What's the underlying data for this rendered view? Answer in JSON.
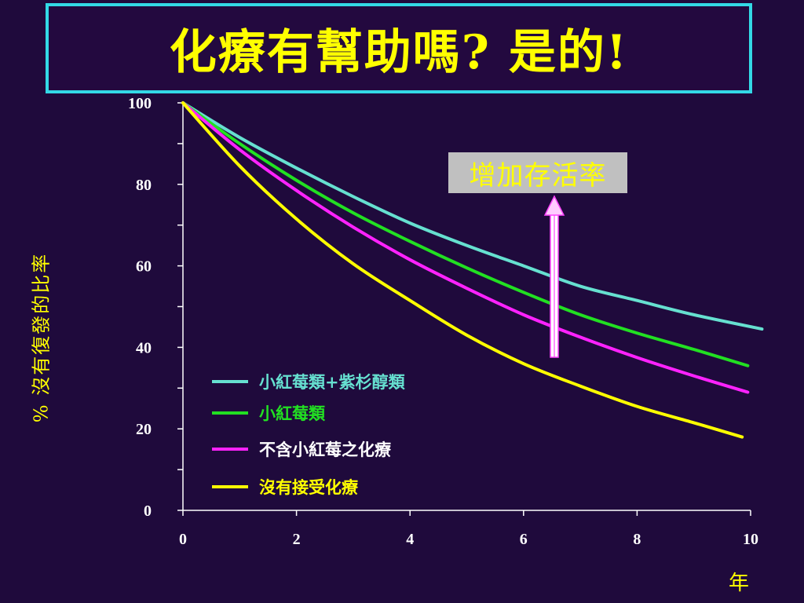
{
  "slide": {
    "title": "化療有幫助嗎? 是的!"
  },
  "chart_data": {
    "type": "line",
    "title": "",
    "xlabel": "年",
    "ylabel": "% 沒有復發的比率",
    "xlim": [
      0,
      10
    ],
    "ylim": [
      0,
      100
    ],
    "x_ticks": [
      0,
      2,
      4,
      6,
      8,
      10
    ],
    "y_ticks": [
      0,
      20,
      40,
      60,
      80,
      100
    ],
    "grid": false,
    "legend_position": "center",
    "annotation": "增加存活率",
    "series": [
      {
        "name": "小紅莓類+紫杉醇類",
        "color": "#66e0d0",
        "x": [
          0,
          1,
          2,
          3,
          4,
          5,
          6,
          7,
          8,
          9,
          10.2
        ],
        "values": [
          100,
          91.5,
          84,
          77,
          70.5,
          65,
          60,
          55,
          51.5,
          48,
          44.5
        ]
      },
      {
        "name": "小紅莓類",
        "color": "#22e022",
        "x": [
          0,
          1,
          2,
          3,
          4,
          5,
          6,
          7,
          8,
          9,
          9.95
        ],
        "values": [
          100,
          90,
          81,
          73,
          66,
          59.5,
          53.5,
          48,
          43.5,
          39.5,
          35.5
        ]
      },
      {
        "name": "不含小紅莓之化療",
        "color": "#ff22ff",
        "x": [
          0,
          1,
          2,
          3,
          4,
          5,
          6,
          7,
          8,
          9,
          9.95
        ],
        "values": [
          100,
          88.5,
          78.5,
          69.5,
          61.5,
          54.5,
          48,
          42.5,
          37.5,
          33,
          29
        ]
      },
      {
        "name": "沒有接受化療",
        "color": "#ffff00",
        "x": [
          0,
          1,
          2,
          3,
          4,
          5,
          6,
          7,
          8,
          9,
          9.85
        ],
        "values": [
          100,
          84.5,
          71.5,
          60.5,
          51.5,
          43,
          36,
          30.5,
          25.5,
          21.5,
          18
        ]
      }
    ]
  }
}
